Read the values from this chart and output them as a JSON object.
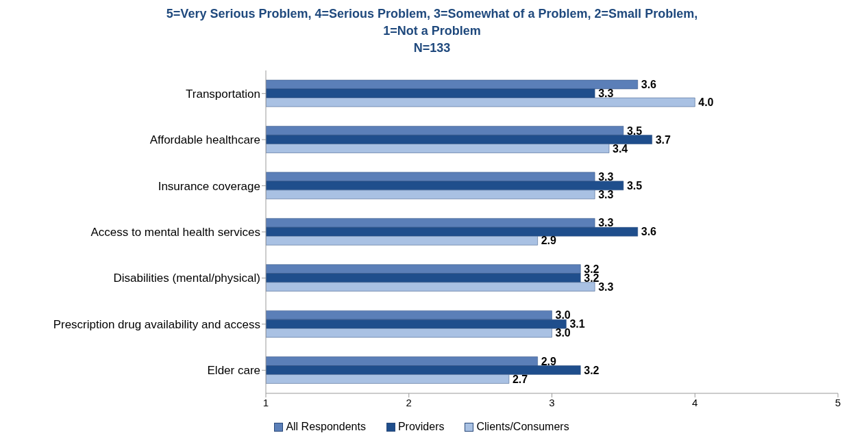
{
  "chart_data": {
    "type": "bar",
    "orientation": "horizontal",
    "title": "5=Very Serious Problem, 4=Serious Problem, 3=Somewhat of a Problem, 2=Small Problem, 1=Not a Problem",
    "subtitle": "N=133",
    "categories": [
      "Transportation",
      "Affordable healthcare",
      "Insurance coverage",
      "Access to mental health services",
      "Disabilities (mental/physical)",
      "Prescription drug availability and access",
      "Elder care"
    ],
    "series": [
      {
        "name": "All Respondents",
        "color": "#5b7fb8",
        "values": [
          3.6,
          3.5,
          3.3,
          3.3,
          3.2,
          3.0,
          2.9
        ],
        "value_labels": [
          "3.6",
          "3.5",
          "3.3",
          "3.3",
          "3.2",
          "3.0",
          "2.9"
        ]
      },
      {
        "name": "Providers",
        "color": "#1f4e8c",
        "values": [
          3.3,
          3.7,
          3.5,
          3.6,
          3.2,
          3.1,
          3.2
        ],
        "value_labels": [
          "3.3",
          "3.7",
          "3.5",
          "3.6",
          "3.2",
          "3.1",
          "3.2"
        ]
      },
      {
        "name": "Clients/Consumers",
        "color": "#a9c1e3",
        "values": [
          4.0,
          3.4,
          3.3,
          2.9,
          3.3,
          3.0,
          2.7
        ],
        "value_labels": [
          "4.0",
          "3.4",
          "3.3",
          "2.9",
          "3.3",
          "3.0",
          "2.7"
        ]
      }
    ],
    "xlim": [
      1,
      5
    ],
    "xticks": [
      1,
      2,
      3,
      4,
      5
    ],
    "grid": false,
    "legend": "bottom"
  }
}
